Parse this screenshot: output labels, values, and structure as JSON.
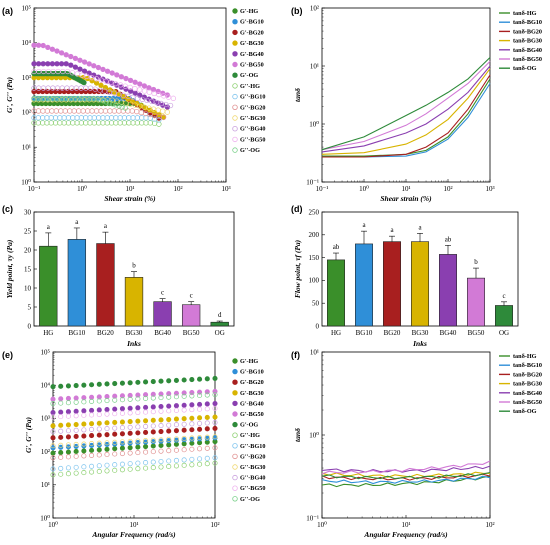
{
  "colors": {
    "HG": "#3a8f2a",
    "BG10": "#2f8fd8",
    "BG20": "#a81f1f",
    "BG30": "#d8b400",
    "BG40": "#8a3fb0",
    "BG50": "#d27ad6",
    "OG": "#2e8a3a",
    "HG_light": "#8cd070",
    "BG10_light": "#7ec4ee",
    "BG20_light": "#e09090",
    "BG30_light": "#f0d870",
    "BG40_light": "#c9a0de",
    "BG50_light": "#eeb0ee",
    "OG_light": "#7ad08a"
  },
  "chart_data": [
    {
      "panel": "(a)",
      "type": "scatter",
      "xlabel": "Shear strain (%)",
      "ylabel": "G', G'' (Pa)",
      "xscale": "log",
      "yscale": "log",
      "xlim": [
        0.1,
        1000
      ],
      "ylim": [
        1,
        100000
      ],
      "xticks": [
        "10⁻¹",
        "10⁰",
        "10¹",
        "10²",
        "10³"
      ],
      "yticks": [
        "10⁰",
        "10¹",
        "10²",
        "10³",
        "10⁴",
        "10⁵"
      ],
      "legend": [
        "G'-HG",
        "G'-BG10",
        "G'-BG20",
        "G'-BG30",
        "G'-BG40",
        "G'-BG50",
        "G'-OG",
        "G''-HG",
        "G''-BG10",
        "G''-BG20",
        "G''-BG30",
        "G''-BG40",
        "G''-BG50",
        "G''-OG"
      ],
      "legend_position": "right",
      "series": [
        {
          "name": "G'-HG",
          "plateau": 180,
          "yield_x": 15,
          "slope": -0.9,
          "end": 25,
          "filled": true
        },
        {
          "name": "G'-BG10",
          "plateau": 250,
          "yield_x": 10,
          "slope": -0.95,
          "end": 25,
          "filled": true
        },
        {
          "name": "G'-BG20",
          "plateau": 400,
          "yield_x": 5,
          "slope": -0.85,
          "end": 40,
          "filled": true
        },
        {
          "name": "G'-BG30",
          "plateau": 1000,
          "yield_x": 1.2,
          "slope": -0.7,
          "end": 50,
          "filled": true
        },
        {
          "name": "G'-BG40",
          "plateau": 2500,
          "yield_x": 0.5,
          "slope": -0.6,
          "end": 60,
          "filled": true
        },
        {
          "name": "G'-BG50",
          "plateau": 8500,
          "yield_x": 0.15,
          "slope": -0.55,
          "end": 60,
          "filled": true
        },
        {
          "name": "G'-OG",
          "plateau": 1300,
          "yield_x": 0.5,
          "slope": -0.75,
          "end": 1.1,
          "filled": true
        },
        {
          "name": "G''-HG",
          "plateau": 50,
          "yield_x": 30,
          "slope": -0.3,
          "end": 40,
          "filled": false
        },
        {
          "name": "G''-BG10",
          "plateau": 70,
          "yield_x": 25,
          "slope": -0.3,
          "end": 40,
          "filled": false
        },
        {
          "name": "G''-BG20",
          "plateau": 110,
          "yield_x": 12,
          "slope": -0.3,
          "end": 50,
          "filled": false
        },
        {
          "name": "G''-BG30",
          "plateau": 230,
          "yield_x": 4,
          "slope": -0.3,
          "end": 60,
          "filled": false
        },
        {
          "name": "G''-BG40",
          "plateau": 500,
          "yield_x": 1.5,
          "slope": -0.3,
          "end": 70,
          "filled": false
        },
        {
          "name": "G''-BG50",
          "plateau": 1500,
          "yield_x": 0.5,
          "slope": -0.35,
          "end": 80,
          "filled": false
        },
        {
          "name": "G''-OG",
          "plateau": 250,
          "yield_x": 2,
          "slope": -0.45,
          "end": 8,
          "filled": false
        }
      ]
    },
    {
      "panel": "(b)",
      "type": "line",
      "xlabel": "Shear strain (%)",
      "ylabel": "tanδ",
      "xscale": "log",
      "yscale": "log",
      "xlim": [
        0.1,
        1000
      ],
      "ylim": [
        0.1,
        100
      ],
      "xticks": [
        "10⁻¹",
        "10⁰",
        "10¹",
        "10²",
        "10³"
      ],
      "yticks": [
        "10⁻¹",
        "10⁰",
        "10¹",
        "10²"
      ],
      "legend": [
        "tanδ-HG",
        "tanδ-BG10",
        "tanδ-BG20",
        "tanδ-BG30",
        "tanδ-BG40",
        "tanδ-BG50",
        "tanδ-OG"
      ],
      "legend_position": "top-right",
      "series": [
        {
          "name": "tanδ-HG",
          "x": [
            0.1,
            1,
            10,
            30,
            100,
            300,
            1000
          ],
          "y": [
            0.28,
            0.28,
            0.3,
            0.35,
            0.6,
            1.5,
            6.0
          ]
        },
        {
          "name": "tanδ-BG10",
          "x": [
            0.1,
            1,
            10,
            30,
            100,
            300,
            1000
          ],
          "y": [
            0.27,
            0.27,
            0.28,
            0.33,
            0.55,
            1.3,
            5.0
          ]
        },
        {
          "name": "tanδ-BG20",
          "x": [
            0.1,
            1,
            10,
            30,
            100,
            300,
            1000
          ],
          "y": [
            0.27,
            0.27,
            0.3,
            0.4,
            0.7,
            1.8,
            7.0
          ]
        },
        {
          "name": "tanδ-BG30",
          "x": [
            0.1,
            1,
            10,
            30,
            100,
            300,
            1000
          ],
          "y": [
            0.3,
            0.32,
            0.45,
            0.65,
            1.2,
            2.8,
            9.0
          ]
        },
        {
          "name": "tanδ-BG40",
          "x": [
            0.1,
            1,
            10,
            30,
            100,
            300,
            1000
          ],
          "y": [
            0.33,
            0.42,
            0.7,
            1.0,
            1.8,
            3.5,
            10.0
          ]
        },
        {
          "name": "tanδ-BG50",
          "x": [
            0.1,
            1,
            10,
            30,
            100,
            300,
            1000
          ],
          "y": [
            0.36,
            0.5,
            0.95,
            1.5,
            2.8,
            5.0,
            12.0
          ]
        },
        {
          "name": "tanδ-OG",
          "x": [
            0.1,
            1,
            10,
            30,
            100,
            300,
            1000
          ],
          "y": [
            0.36,
            0.6,
            1.4,
            2.1,
            3.5,
            6.0,
            14.0
          ]
        }
      ]
    },
    {
      "panel": "(c)",
      "type": "bar",
      "xlabel": "Inks",
      "ylabel": "Yield point, τy (Pa)",
      "ylim": [
        0,
        30
      ],
      "yticks": [
        "0",
        "5",
        "10",
        "15",
        "20",
        "25",
        "30"
      ],
      "categories": [
        "HG",
        "BG10",
        "BG20",
        "BG30",
        "BG40",
        "BG50",
        "OG"
      ],
      "values": [
        21,
        22.8,
        21.7,
        12.8,
        6.4,
        5.6,
        1.0
      ],
      "errors": [
        3.5,
        3.0,
        3.0,
        1.5,
        0.8,
        0.8,
        0.3
      ],
      "significance": [
        "a",
        "a",
        "a",
        "b",
        "c",
        "c",
        "d"
      ]
    },
    {
      "panel": "(d)",
      "type": "bar",
      "xlabel": "Inks",
      "ylabel": "Flow point, τf (Pa)",
      "ylim": [
        0,
        250
      ],
      "yticks": [
        "0",
        "50",
        "100",
        "150",
        "200",
        "250"
      ],
      "categories": [
        "HG",
        "BG10",
        "BG20",
        "BG30",
        "BG40",
        "BG50",
        "OG"
      ],
      "values": [
        145,
        180,
        185,
        185,
        157,
        105,
        45
      ],
      "errors": [
        15,
        28,
        12,
        18,
        20,
        22,
        8
      ],
      "significance": [
        "ab",
        "a",
        "a",
        "a",
        "ab",
        "b",
        "c"
      ]
    },
    {
      "panel": "(e)",
      "type": "scatter",
      "xlabel": "Angular Frequency (rad/s)",
      "ylabel": "G', G'' (Pa)",
      "xscale": "log",
      "yscale": "log",
      "xlim": [
        1,
        100
      ],
      "ylim": [
        1,
        100000
      ],
      "xticks": [
        "10⁰",
        "10¹",
        "10²"
      ],
      "yticks": [
        "10⁰",
        "10¹",
        "10²",
        "10³",
        "10⁴",
        "10⁵"
      ],
      "legend": [
        "G'-HG",
        "G'-BG10",
        "G'-BG20",
        "G'-BG30",
        "G'-BG40",
        "G'-BG50",
        "G'-OG",
        "G''-HG",
        "G''-BG10",
        "G''-BG20",
        "G''-BG30",
        "G''-BG40",
        "G''-BG50",
        "G''-OG"
      ],
      "legend_position": "right",
      "series": [
        {
          "name": "G'-HG",
          "y_start": 90,
          "y_end": 200,
          "filled": true
        },
        {
          "name": "G'-BG10",
          "y_start": 130,
          "y_end": 260,
          "filled": true
        },
        {
          "name": "G'-BG20",
          "y_start": 260,
          "y_end": 500,
          "filled": true
        },
        {
          "name": "G'-BG30",
          "y_start": 600,
          "y_end": 1100,
          "filled": true
        },
        {
          "name": "G'-BG40",
          "y_start": 1500,
          "y_end": 2800,
          "filled": true
        },
        {
          "name": "G'-BG50",
          "y_start": 3800,
          "y_end": 6500,
          "filled": true
        },
        {
          "name": "G'-OG",
          "y_start": 9000,
          "y_end": 16000,
          "filled": true
        },
        {
          "name": "G''-HG",
          "y_start": 20,
          "y_end": 45,
          "filled": false
        },
        {
          "name": "G''-BG10",
          "y_start": 30,
          "y_end": 65,
          "filled": false
        },
        {
          "name": "G''-BG20",
          "y_start": 65,
          "y_end": 130,
          "filled": false
        },
        {
          "name": "G''-BG30",
          "y_start": 150,
          "y_end": 280,
          "filled": false
        },
        {
          "name": "G''-BG40",
          "y_start": 400,
          "y_end": 750,
          "filled": false
        },
        {
          "name": "G''-BG50",
          "y_start": 1100,
          "y_end": 2000,
          "filled": false
        },
        {
          "name": "G''-OG",
          "y_start": 2800,
          "y_end": 5200,
          "filled": false
        }
      ]
    },
    {
      "panel": "(f)",
      "type": "line",
      "xlabel": "Angular Frequency (rad/s)",
      "ylabel": "tanδ",
      "xscale": "log",
      "yscale": "log",
      "xlim": [
        1,
        100
      ],
      "ylim": [
        0.1,
        10
      ],
      "xticks": [
        "10⁰",
        "10¹",
        "10²"
      ],
      "yticks": [
        "10⁻¹",
        "10⁰",
        "10¹"
      ],
      "legend": [
        "tanδ-HG",
        "tanδ-BG10",
        "tanδ-BG20",
        "tanδ-BG30",
        "tanδ-BG40",
        "tanδ-BG50",
        "tanδ-OG"
      ],
      "legend_position": "top-right",
      "series": [
        {
          "name": "tanδ-HG",
          "base": 0.24,
          "end": 0.3
        },
        {
          "name": "tanδ-BG10",
          "base": 0.27,
          "end": 0.3
        },
        {
          "name": "tanδ-BG20",
          "base": 0.3,
          "end": 0.32
        },
        {
          "name": "tanδ-BG30",
          "base": 0.33,
          "end": 0.34
        },
        {
          "name": "tanδ-BG40",
          "base": 0.37,
          "end": 0.4
        },
        {
          "name": "tanδ-BG50",
          "base": 0.34,
          "end": 0.45
        },
        {
          "name": "tanδ-OG",
          "base": 0.31,
          "end": 0.33
        }
      ]
    }
  ]
}
